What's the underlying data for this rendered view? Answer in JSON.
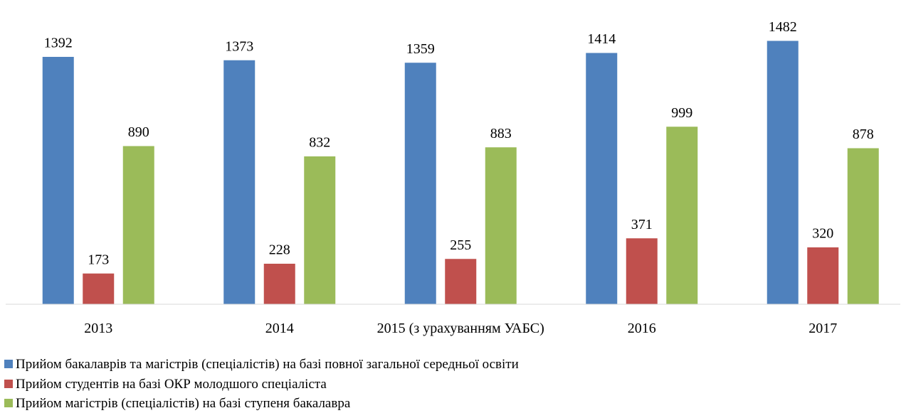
{
  "chart_data": {
    "type": "bar",
    "categories": [
      "2013",
      "2014",
      "2015 (з урахуванням УАБС)",
      "2016",
      "2017"
    ],
    "series": [
      {
        "name": "Прийом бакалаврів та магістрів (спеціалістів) на базі повної загальної середньої освіти",
        "color": "#4f81bd",
        "values": [
          1392,
          1373,
          1359,
          1414,
          1482
        ]
      },
      {
        "name": "Прийом студентів на базі ОКР молодшого спеціаліста",
        "color": "#c0504d",
        "values": [
          173,
          228,
          255,
          371,
          320
        ]
      },
      {
        "name": "Прийом магістрів (спеціалістів) на базі ступеня бакалавра",
        "color": "#9bbb59",
        "values": [
          890,
          832,
          883,
          999,
          878
        ]
      }
    ],
    "ylim": [
      0,
      1700
    ]
  }
}
